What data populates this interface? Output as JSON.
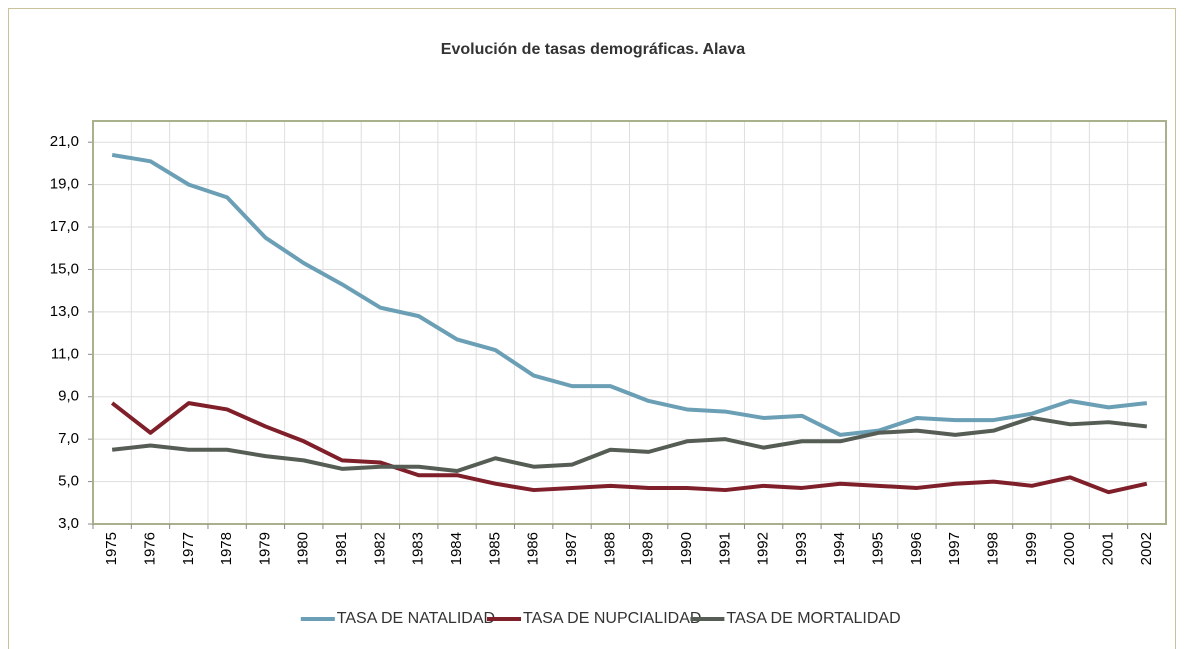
{
  "chart_data": {
    "type": "line",
    "title": "Evolución de tasas demográficas. Alava",
    "categories": [
      "1975",
      "1976",
      "1977",
      "1978",
      "1979",
      "1980",
      "1981",
      "1982",
      "1983",
      "1984",
      "1985",
      "1986",
      "1987",
      "1988",
      "1989",
      "1990",
      "1991",
      "1992",
      "1993",
      "1994",
      "1995",
      "1996",
      "1997",
      "1998",
      "1999",
      "2000",
      "2001",
      "2002"
    ],
    "series": [
      {
        "name": "TASA DE NATALIDAD",
        "color": "#6a9fb5",
        "values": [
          20.4,
          20.1,
          19.0,
          18.4,
          16.5,
          15.3,
          14.3,
          13.2,
          12.8,
          11.7,
          11.2,
          10.0,
          9.5,
          9.5,
          8.8,
          8.4,
          8.3,
          8.0,
          8.1,
          7.2,
          7.4,
          8.0,
          7.9,
          7.9,
          8.2,
          8.8,
          8.5,
          8.7
        ]
      },
      {
        "name": "TASA DE NUPCIALIDAD",
        "color": "#7f1f2a",
        "values": [
          8.7,
          7.3,
          8.7,
          8.4,
          7.6,
          6.9,
          6.0,
          5.9,
          5.3,
          5.3,
          4.9,
          4.6,
          4.7,
          4.8,
          4.7,
          4.7,
          4.6,
          4.8,
          4.7,
          4.9,
          4.8,
          4.7,
          4.9,
          5.0,
          4.8,
          5.2,
          4.5,
          4.9
        ]
      },
      {
        "name": "TASA DE MORTALIDAD",
        "color": "#555d55",
        "values": [
          6.5,
          6.7,
          6.5,
          6.5,
          6.2,
          6.0,
          5.6,
          5.7,
          5.7,
          5.5,
          6.1,
          5.7,
          5.8,
          6.5,
          6.4,
          6.9,
          7.0,
          6.6,
          6.9,
          6.9,
          7.3,
          7.4,
          7.2,
          7.4,
          8.0,
          7.7,
          7.8,
          7.6
        ]
      }
    ],
    "ylim": [
      3,
      22
    ],
    "yticks": [
      {
        "value": 3,
        "label": "3,0"
      },
      {
        "value": 5,
        "label": "5,0"
      },
      {
        "value": 7,
        "label": "7,0"
      },
      {
        "value": 9,
        "label": "9,0"
      },
      {
        "value": 11,
        "label": "11,0"
      },
      {
        "value": 13,
        "label": "13,0"
      },
      {
        "value": 15,
        "label": "15,0"
      },
      {
        "value": 17,
        "label": "17,0"
      },
      {
        "value": 19,
        "label": "19,0"
      },
      {
        "value": 21,
        "label": "21,0"
      }
    ],
    "grid": true,
    "legend": "bottom"
  }
}
